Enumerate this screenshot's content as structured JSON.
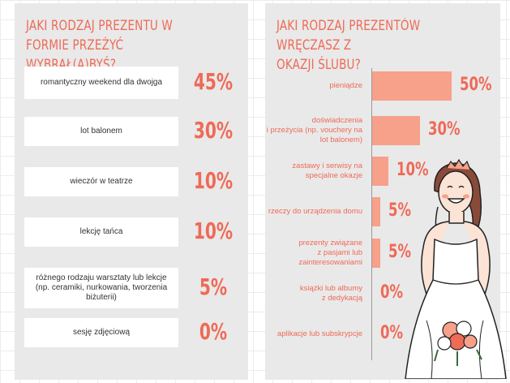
{
  "left": {
    "title": "JAKI RODZAJ PREZENTU W FORMIE PRZEŻYĆ\nWYBRAŁ(A)BYŚ?",
    "colors": {
      "accent": "#ef6a57",
      "panel": "#e9e9e9"
    }
  },
  "right": {
    "title": "JAKI RODZAJ PREZENTÓW WRĘCZASZ Z\nOKAZJI ŚLUBU?",
    "colors": {
      "bar": "#f7a08a",
      "accent": "#ef6a57"
    }
  },
  "chart_data": [
    {
      "type": "table",
      "title": "JAKI RODZAJ PREZENTU W FORMIE PRZEŻYĆ WYBRAŁ(A)BYŚ?",
      "categories": [
        "romantyczny weekend dla dwojga",
        "lot balonem",
        "wieczór w teatrze",
        "lekcję tańca",
        "różnego rodzaju warsztaty lub lekcje (np. ceramiki, nurkowania, tworzenia biżuterii)",
        "sesję zdjęciową"
      ],
      "values": [
        45,
        30,
        10,
        10,
        5,
        0
      ],
      "labels": [
        "45%",
        "30%",
        "10%",
        "10%",
        "5%",
        "0%"
      ]
    },
    {
      "type": "bar",
      "orientation": "horizontal",
      "title": "JAKI RODZAJ PREZENTÓW WRĘCZASZ Z OKAZJI ŚLUBU?",
      "categories": [
        "pieniądze",
        "doświadczenia\ni przeżycia (np. vouchery na\nlot balonem)",
        "zastawy i serwisy na\nspecjalne okazje",
        "rzeczy do urządzenia domu",
        "prezenty związane\nz pasjami lub\nzainteresowaniami",
        "książki lub albumy\nz dedykacją",
        "aplikacje lub subskrypcje"
      ],
      "values": [
        50,
        30,
        10,
        5,
        5,
        0,
        0
      ],
      "labels": [
        "50%",
        "30%",
        "10%",
        "5%",
        "5%",
        "0%",
        "0%"
      ],
      "xlim": [
        0,
        50
      ],
      "grid": false
    }
  ]
}
